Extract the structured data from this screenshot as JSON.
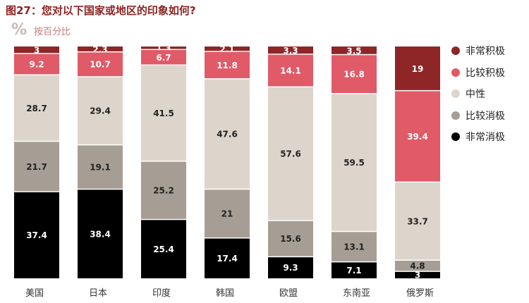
{
  "title": "图27：您对以下国家或地区的印象如何?",
  "subtitle": "按百分比",
  "subtitle_icon": "percent-icon",
  "legend": [
    {
      "label": "非常积极",
      "color": "#8e2526"
    },
    {
      "label": "比较积极",
      "color": "#e05a68"
    },
    {
      "label": "中性",
      "color": "#ddd5cb"
    },
    {
      "label": "比较消极",
      "color": "#a69e94"
    },
    {
      "label": "非常消极",
      "color": "#000000"
    }
  ],
  "chart_data": {
    "type": "bar",
    "stacked": true,
    "title": "图27：您对以下国家或地区的印象如何?",
    "subtitle": "按百分比",
    "categories": [
      "美国",
      "日本",
      "印度",
      "韩国",
      "欧盟",
      "东南亚",
      "俄罗斯"
    ],
    "series": [
      {
        "name": "非常积极",
        "color": "#8e2526",
        "values": [
          3,
          2.3,
          1.3,
          2.1,
          3.3,
          3.5,
          19
        ]
      },
      {
        "name": "比较积极",
        "color": "#e05a68",
        "values": [
          9.2,
          10.7,
          6.7,
          11.8,
          14.1,
          16.8,
          39.4
        ]
      },
      {
        "name": "中性",
        "color": "#ddd5cb",
        "values": [
          28.7,
          29.4,
          41.5,
          47.6,
          57.6,
          59.5,
          33.7
        ]
      },
      {
        "name": "比较消极",
        "color": "#a69e94",
        "values": [
          21.7,
          19.1,
          25.2,
          21,
          15.6,
          13.1,
          4.8
        ]
      },
      {
        "name": "非常消极",
        "color": "#000000",
        "values": [
          37.4,
          38.4,
          25.4,
          17.4,
          9.3,
          7.1,
          3
        ]
      }
    ],
    "label_colors": {
      "非常积极": "#ffffff",
      "比较积极": "#ffffff",
      "中性": "#222222",
      "比较消极": "#222222",
      "非常消极": "#ffffff"
    },
    "ylim": [
      0,
      100
    ],
    "xlabel": "",
    "ylabel": "",
    "grid": false,
    "legend_position": "right"
  }
}
